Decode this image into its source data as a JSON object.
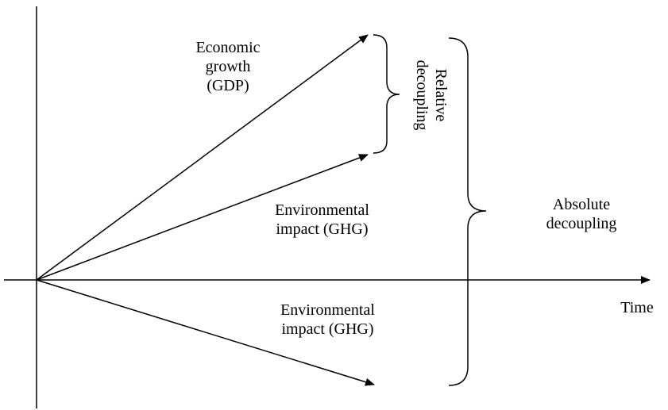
{
  "diagram": {
    "gdp_label": [
      "Economic",
      "growth",
      "(GDP)"
    ],
    "ghg_up_label": [
      "Environmental",
      "impact (GHG)"
    ],
    "ghg_down_label": [
      "Environmental",
      "impact (GHG)"
    ],
    "relative_label": [
      "Relative",
      "decoupling"
    ],
    "absolute_label": [
      "Absolute",
      "decoupling"
    ],
    "time_label": "Time"
  },
  "colors": {
    "ink": "#000000",
    "background": "#ffffff"
  }
}
